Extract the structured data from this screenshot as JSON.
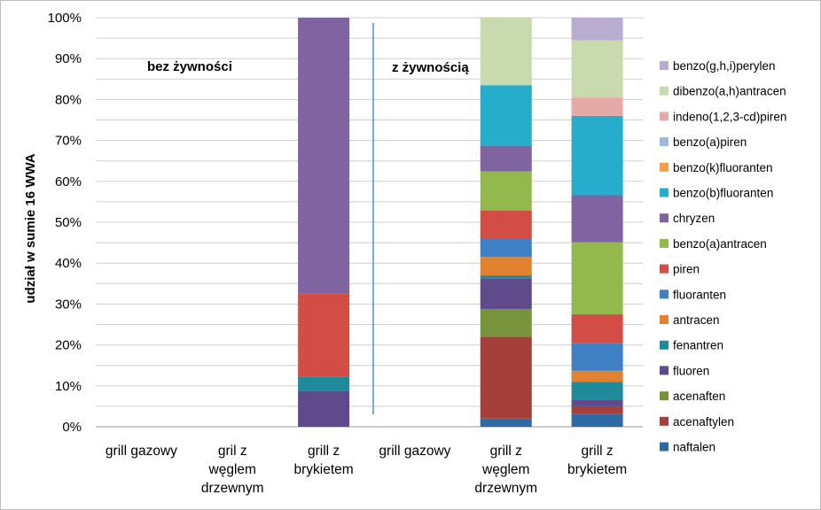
{
  "chart_data": {
    "type": "bar",
    "stacked": "percent",
    "ylabel": "udział w sumie 16 WWA",
    "xlabel": "",
    "ylim": [
      0,
      100
    ],
    "yticks": [
      "0%",
      "10%",
      "20%",
      "30%",
      "40%",
      "50%",
      "60%",
      "70%",
      "80%",
      "90%",
      "100%"
    ],
    "grid": true,
    "legend_position": "right",
    "categories": [
      [
        "grill gazowy"
      ],
      [
        "gril z",
        "węglem",
        "drzewnym"
      ],
      [
        "grill z",
        "brykietem"
      ],
      [
        "grill gazowy"
      ],
      [
        "grill z",
        "węglem",
        "drzewnym"
      ],
      [
        "grill z",
        "brykietem"
      ]
    ],
    "annotations": [
      "bez żywności",
      "z żywnością"
    ],
    "series": [
      {
        "name": "naftalen",
        "color": "#2E6BA4",
        "values": [
          0,
          0,
          0,
          0,
          2.0,
          3.2
        ]
      },
      {
        "name": "acenaftylen",
        "color": "#A43F3B",
        "values": [
          0,
          0,
          0,
          0,
          20.0,
          1.8
        ]
      },
      {
        "name": "acenaften",
        "color": "#77933C",
        "values": [
          0,
          0,
          0,
          0,
          6.8,
          0.0
        ]
      },
      {
        "name": "fluoren",
        "color": "#5F4B8B",
        "values": [
          0,
          0,
          8.8,
          0,
          7.5,
          1.5
        ]
      },
      {
        "name": "fenantren",
        "color": "#1F8A9A",
        "values": [
          0,
          0,
          3.5,
          0,
          0.7,
          4.5
        ]
      },
      {
        "name": "antracen",
        "color": "#E0822F",
        "values": [
          0,
          0,
          0,
          0,
          4.5,
          2.7
        ]
      },
      {
        "name": "fluoranten",
        "color": "#3F7FC4",
        "values": [
          0,
          0,
          0,
          0,
          4.6,
          6.8
        ]
      },
      {
        "name": "piren",
        "color": "#D24D45",
        "values": [
          0,
          0,
          20.3,
          0,
          6.8,
          7.0
        ]
      },
      {
        "name": "benzo(a)antracen",
        "color": "#93B94E",
        "values": [
          0,
          0,
          0,
          0,
          9.5,
          17.6
        ]
      },
      {
        "name": "chryzen",
        "color": "#8064A2",
        "values": [
          0,
          0,
          67.4,
          0,
          6.3,
          11.5
        ]
      },
      {
        "name": "benzo(b)fluoranten",
        "color": "#26ADCB",
        "values": [
          0,
          0,
          0,
          0,
          14.8,
          19.4
        ]
      },
      {
        "name": "benzo(k)fluoranten",
        "color": "#F59D47",
        "values": [
          0,
          0,
          0,
          0,
          0,
          0
        ]
      },
      {
        "name": "benzo(a)piren",
        "color": "#9DB8DA",
        "values": [
          0,
          0,
          0,
          0,
          0,
          0
        ]
      },
      {
        "name": "indeno(1,2,3-cd)piren",
        "color": "#E5AAA8",
        "values": [
          0,
          0,
          0,
          0,
          0,
          4.5
        ]
      },
      {
        "name": "dibenzo(a,h)antracen",
        "color": "#C8DAAE",
        "values": [
          0,
          0,
          0,
          0,
          16.5,
          14.0
        ]
      },
      {
        "name": "benzo(g,h,i)perylen",
        "color": "#B8ADD0",
        "values": [
          0,
          0,
          0,
          0,
          0,
          5.5
        ]
      }
    ]
  }
}
